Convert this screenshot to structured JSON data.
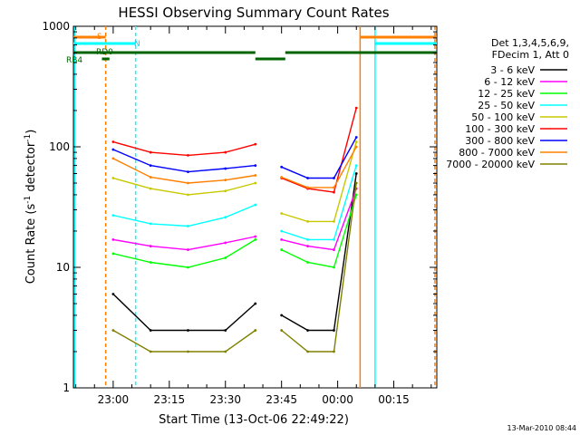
{
  "chart_data": {
    "type": "line",
    "title": "HESSI Observing Summary Count Rates",
    "xlabel": "Start Time (13-Oct-06 22:49:22)",
    "ylabel": "Count Rate (s^-1 detector^-1)",
    "ylabel_main": "Count Rate (s",
    "ylabel_sup1": "-1",
    "ylabel_mid": " detector",
    "ylabel_sup2": "-1",
    "ylabel_end": ")",
    "yscale": "log",
    "ylim": [
      1,
      1000
    ],
    "xlim": [
      "22:49:22",
      "00:26:30"
    ],
    "x_ticks": [
      "23:00",
      "23:15",
      "23:30",
      "23:45",
      "00:00",
      "00:15"
    ],
    "y_ticks": [
      "1",
      "10",
      "100",
      "1000"
    ],
    "grid": false,
    "legend_position": "right",
    "legend_header": [
      "Det 1,3,4,5,6,9,",
      "FDecim 1, Att 0"
    ],
    "timestamp": "13-Mar-2010 08:44",
    "x": [
      "23:00",
      "23:10",
      "23:20",
      "23:30",
      "23:38",
      "23:45",
      "23:52",
      "23:59",
      "00:05"
    ],
    "series": [
      {
        "name": "3 - 6 keV",
        "color": "#000000",
        "values": [
          6,
          3,
          3,
          3,
          5,
          4,
          3,
          3,
          60
        ]
      },
      {
        "name": "6 - 12 keV",
        "color": "#ff00ff",
        "values": [
          17,
          15,
          14,
          16,
          18,
          17,
          15,
          14,
          45
        ]
      },
      {
        "name": "12 - 25 keV",
        "color": "#00ff00",
        "values": [
          13,
          11,
          10,
          12,
          17,
          14,
          11,
          10,
          40
        ]
      },
      {
        "name": "25 - 50 keV",
        "color": "#00ffff",
        "values": [
          27,
          23,
          22,
          26,
          33,
          20,
          17,
          17,
          70
        ]
      },
      {
        "name": "50 - 100 keV",
        "color": "#c8c800",
        "values": [
          55,
          45,
          40,
          43,
          50,
          28,
          24,
          24,
          110
        ]
      },
      {
        "name": "100 - 300 keV",
        "color": "#ff0000",
        "values": [
          110,
          90,
          85,
          90,
          105,
          55,
          45,
          42,
          210
        ]
      },
      {
        "name": "300 - 800 keV",
        "color": "#0000ff",
        "values": [
          95,
          70,
          62,
          66,
          70,
          68,
          55,
          55,
          120
        ]
      },
      {
        "name": "800 - 7000 keV",
        "color": "#ff8000",
        "values": [
          80,
          56,
          50,
          53,
          58,
          56,
          46,
          46,
          100
        ]
      },
      {
        "name": "7000 - 20000 keV",
        "color": "#808000",
        "values": [
          3,
          2,
          2,
          2,
          3,
          3,
          2,
          2,
          50
        ]
      }
    ],
    "flags": {
      "s_label": "S",
      "n_label": "N",
      "rd_label": "RD0",
      "rb_label": "RB4"
    }
  }
}
